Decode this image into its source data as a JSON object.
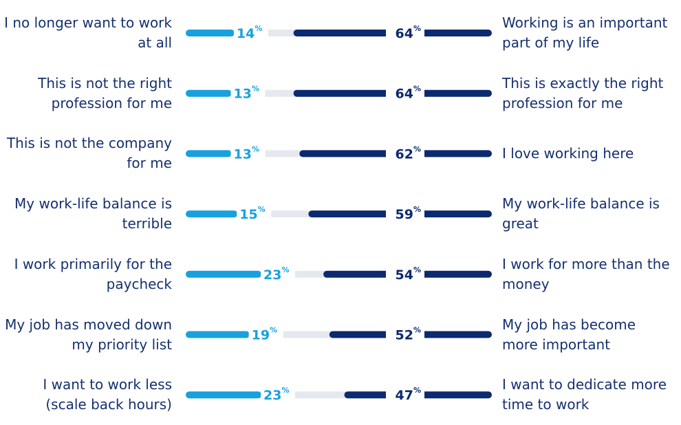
{
  "chart_data": {
    "type": "diverging_bar",
    "xlim": [
      0,
      100
    ],
    "track_color": "#e6e8ef",
    "series": [
      {
        "color": "#17a1de",
        "categories": [
          "I no longer want to work at all",
          "This is not the right profession for me",
          "This is not the company for me",
          "My work-life balance is terrible",
          "I work primarily for the paycheck",
          "My job has moved down my priority list",
          "I want to work less (scale back hours)"
        ],
        "values": [
          14,
          13,
          13,
          15,
          23,
          19,
          23
        ],
        "value_labels": [
          "14%",
          "13%",
          "13%",
          "15%",
          "23%",
          "19%",
          "23%"
        ]
      },
      {
        "color": "#0b2a6f",
        "categories": [
          "Working is an important part of my life",
          "This is exactly the right profession for me",
          "I love working here",
          "My work-life balance is great",
          "I work for more than the money",
          "My job has become more important",
          "I want to dedicate more time to work"
        ],
        "values": [
          64,
          64,
          62,
          59,
          54,
          52,
          47
        ],
        "value_labels": [
          "64%",
          "64%",
          "62%",
          "59%",
          "54%",
          "52%",
          "47%"
        ]
      }
    ]
  }
}
